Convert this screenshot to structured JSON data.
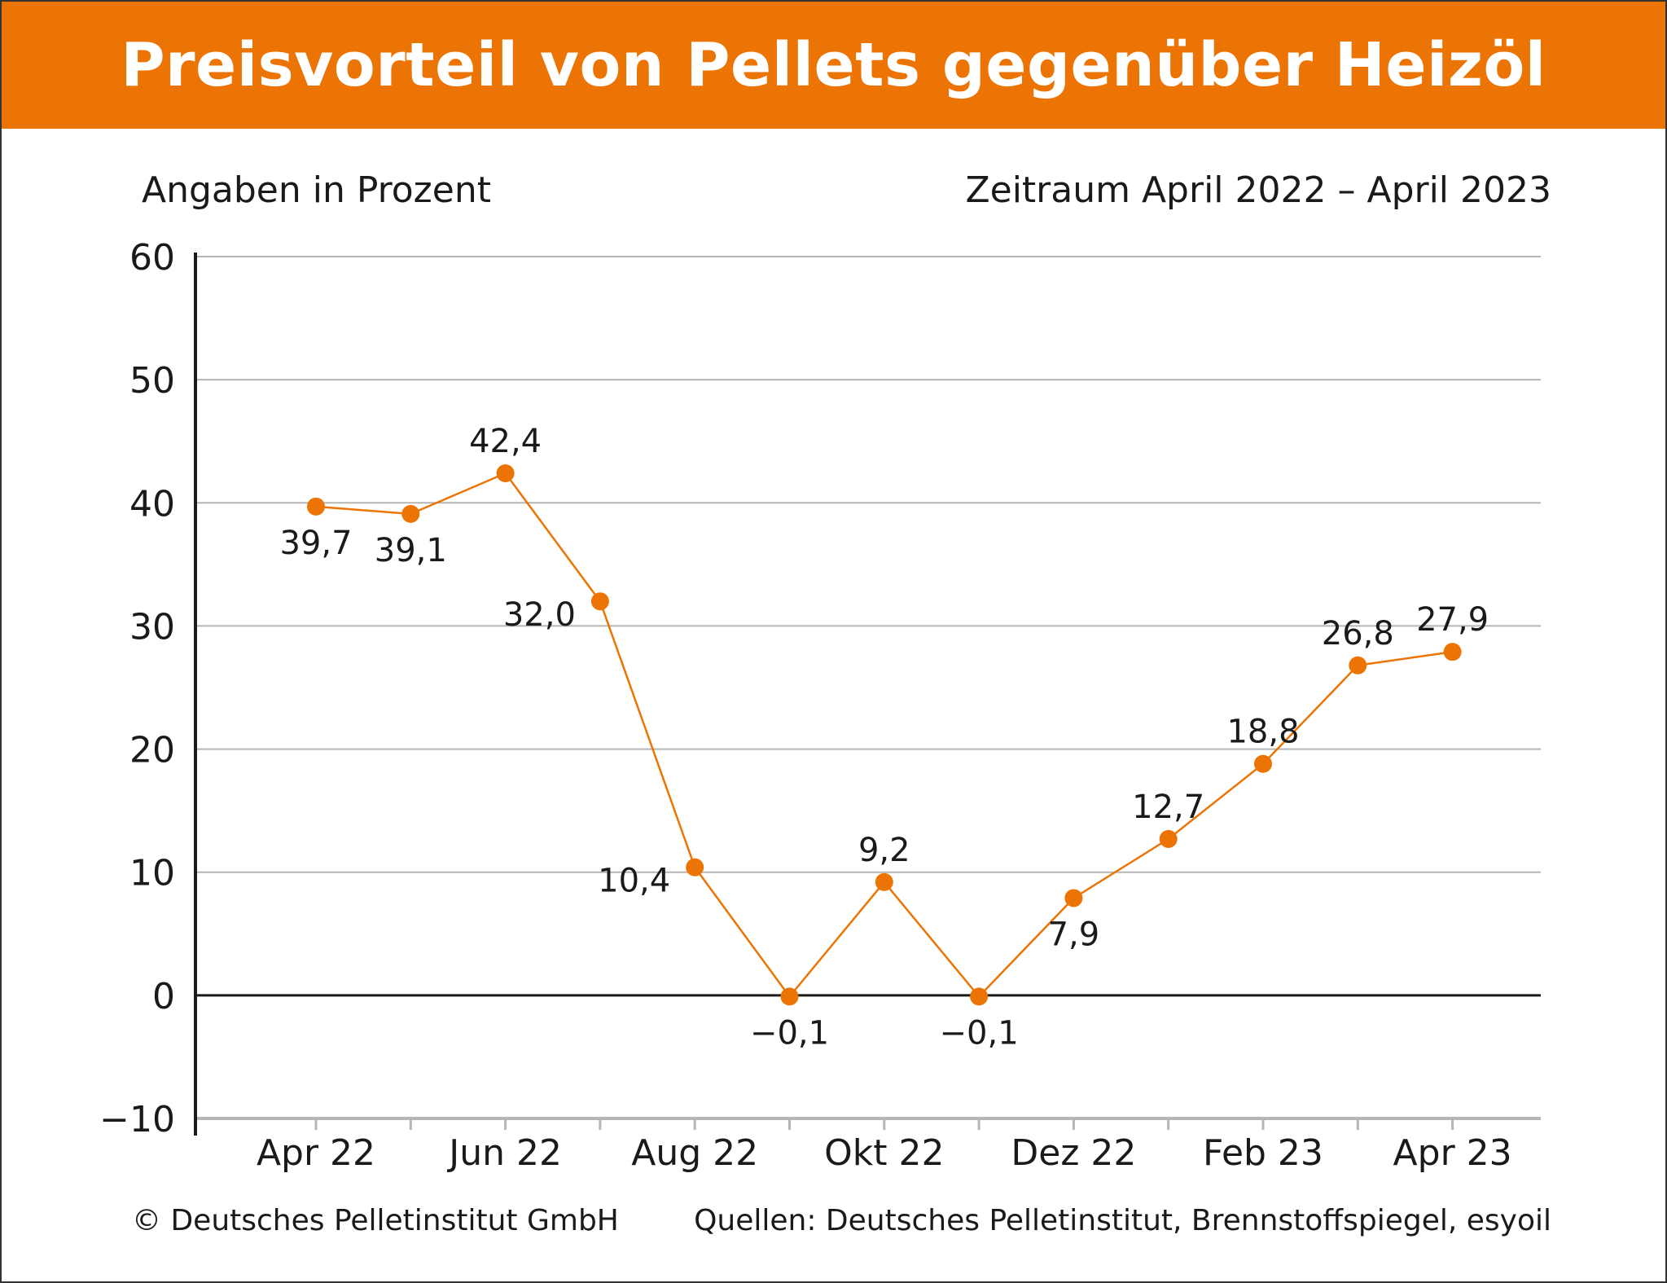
{
  "header": {
    "title": "Preisvorteil von Pellets gegenüber Heizöl",
    "subtitle_left": "Angaben in Prozent",
    "subtitle_right": "Zeitraum April 2022 – April 2023"
  },
  "footer": {
    "copyright": "© Deutsches Pelletinstitut GmbH",
    "sources": "Quellen: Deutsches Pelletinstitut, Brennstoffspiegel, esyoil"
  },
  "colors": {
    "accent": "#ec7404",
    "line": "#ec7404",
    "gridline": "#b5b5b5",
    "axis": "#1a1a1a"
  },
  "chart_data": {
    "type": "line",
    "x": [
      "2022-04",
      "2022-05",
      "2022-06",
      "2022-07",
      "2022-08",
      "2022-09",
      "2022-10",
      "2022-11",
      "2022-12",
      "2023-01",
      "2023-02",
      "2023-03",
      "2023-04"
    ],
    "x_tick_labels": [
      "Apr 22",
      "",
      "Jun 22",
      "",
      "Aug 22",
      "",
      "Okt 22",
      "",
      "Dez 22",
      "",
      "Feb 23",
      "",
      "Apr 23"
    ],
    "series": [
      {
        "values": [
          39.7,
          39.1,
          42.4,
          32.0,
          10.4,
          -0.1,
          9.2,
          -0.1,
          7.9,
          12.7,
          18.8,
          26.8,
          27.9
        ],
        "data_labels": [
          "39,7",
          "39,1",
          "42,4",
          "32,0",
          "10,4",
          "−0,1",
          "9,2",
          "−0,1",
          "7,9",
          "12,7",
          "18,8",
          "26,8",
          "27,9"
        ],
        "label_positions": [
          "below",
          "below",
          "above",
          "left",
          "left",
          "below",
          "above",
          "below",
          "below",
          "above",
          "above",
          "above",
          "above"
        ]
      }
    ],
    "ylim": [
      -10,
      60
    ],
    "yticks": [
      -10,
      0,
      10,
      20,
      30,
      40,
      50,
      60
    ],
    "ytick_labels": [
      "−10",
      "0",
      "10",
      "20",
      "30",
      "40",
      "50",
      "60"
    ],
    "grid": true,
    "legend": "none"
  }
}
